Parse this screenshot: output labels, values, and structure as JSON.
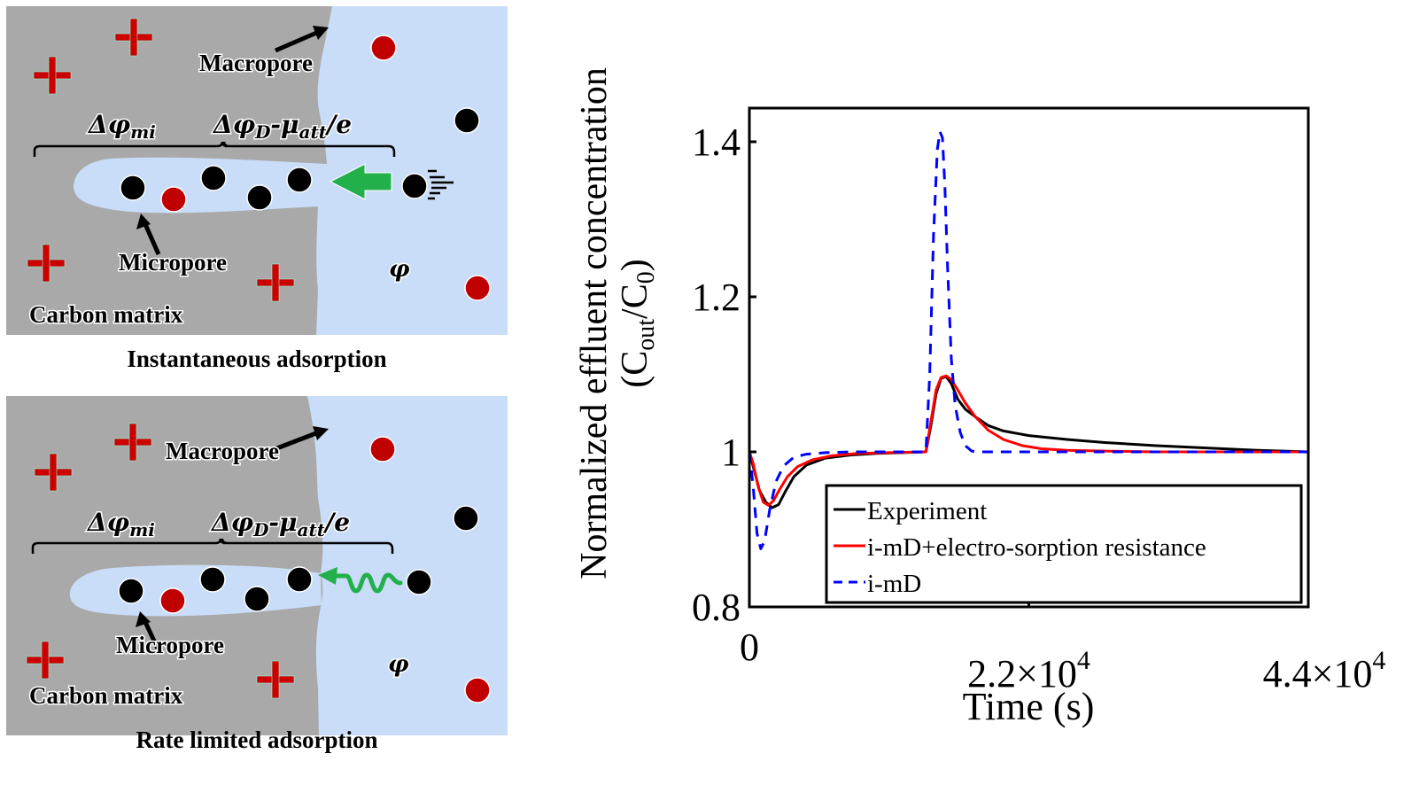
{
  "figure": {
    "panels": [
      {
        "id": "instantaneous",
        "caption": "Instantaneous adsorption",
        "labels": {
          "macropore": "Macropore",
          "micropore": "Micropore",
          "carbon_matrix": "Carbon matrix",
          "delta_phi_mi": "Δφ",
          "delta_phi_mi_sub": "mi",
          "delta_phi_d": "Δφ",
          "delta_phi_d_sub": "D",
          "mu_att": "-μ",
          "mu_att_sub": "att",
          "over_e": "/e",
          "phi": "φ"
        },
        "transport_arrow": "straight-arrow"
      },
      {
        "id": "rate-limited",
        "caption": "Rate limited adsorption",
        "labels": {
          "macropore": "Macropore",
          "micropore": "Micropore",
          "carbon_matrix": "Carbon matrix",
          "delta_phi_mi": "Δφ",
          "delta_phi_mi_sub": "mi",
          "delta_phi_d": "Δφ",
          "delta_phi_d_sub": "D",
          "mu_att": "-μ",
          "mu_att_sub": "att",
          "over_e": "/e",
          "phi": "φ"
        },
        "transport_arrow": "wavy-arrow"
      }
    ],
    "colors": {
      "matrix": "#a9a9a9",
      "pore": "#c9ddf8",
      "cation": "#c00000",
      "anion": "#000000",
      "charge": "#cc0000",
      "arrow": "#22b04b"
    }
  },
  "chart_data": {
    "type": "line",
    "title": "",
    "xlabel": "Time (s)",
    "ylabel_line1": "Normalized effluent concentration",
    "ylabel_line2_parts": [
      "(C",
      "out",
      "/C",
      "0",
      ")"
    ],
    "xlim": [
      0,
      44000
    ],
    "ylim": [
      0.8,
      1.44
    ],
    "xticks": [
      {
        "value": 0,
        "label": "0",
        "exp": ""
      },
      {
        "value": 22000,
        "label": "2.2×10",
        "exp": "4"
      },
      {
        "value": 44000,
        "label": "4.4×10",
        "exp": "4"
      }
    ],
    "yticks": [
      {
        "value": 0.8,
        "label": "0.8"
      },
      {
        "value": 1.0,
        "label": "1"
      },
      {
        "value": 1.2,
        "label": "1.2"
      },
      {
        "value": 1.4,
        "label": "1.4"
      }
    ],
    "grid": false,
    "legend_position": "bottom-right",
    "series": [
      {
        "name": "Experiment",
        "color": "#000000",
        "dash": "solid",
        "x": [
          0,
          400,
          800,
          1300,
          1800,
          2300,
          2800,
          3500,
          4500,
          6000,
          8000,
          10000,
          12000,
          13900,
          14300,
          14700,
          15100,
          15500,
          15900,
          16400,
          17000,
          17800,
          18800,
          20000,
          22000,
          25000,
          28000,
          32000,
          36000,
          40000,
          44000
        ],
        "y": [
          1.0,
          0.975,
          0.95,
          0.935,
          0.928,
          0.932,
          0.948,
          0.968,
          0.983,
          0.992,
          0.996,
          0.998,
          0.999,
          1.0,
          1.035,
          1.075,
          1.095,
          1.097,
          1.088,
          1.068,
          1.055,
          1.045,
          1.034,
          1.027,
          1.021,
          1.016,
          1.012,
          1.008,
          1.005,
          1.002,
          1.0
        ]
      },
      {
        "name": "i-mD+electro-sorption resistance",
        "color": "#ff0000",
        "dash": "solid",
        "x": [
          0,
          300,
          700,
          1100,
          1500,
          1900,
          2400,
          3000,
          3800,
          5000,
          6500,
          8500,
          11000,
          13900,
          14300,
          14700,
          15100,
          15500,
          15900,
          16400,
          17000,
          17800,
          18800,
          20000,
          21500,
          23000,
          25000,
          28000,
          32000,
          44000
        ],
        "y": [
          1.0,
          0.985,
          0.955,
          0.935,
          0.931,
          0.937,
          0.952,
          0.968,
          0.981,
          0.99,
          0.995,
          0.998,
          0.999,
          1.0,
          1.04,
          1.08,
          1.096,
          1.098,
          1.093,
          1.08,
          1.063,
          1.045,
          1.028,
          1.016,
          1.008,
          1.004,
          1.002,
          1.001,
          1.0,
          1.0
        ]
      },
      {
        "name": "i-mD",
        "color": "#0000ff",
        "dash": "dashed",
        "x": [
          0,
          300,
          600,
          900,
          1200,
          1600,
          2100,
          2700,
          3500,
          4500,
          6000,
          8000,
          10000,
          13900,
          14200,
          14500,
          14800,
          15000,
          15200,
          15400,
          15600,
          15900,
          16200,
          16600,
          17000,
          17500,
          18000,
          19000,
          22000,
          44000
        ],
        "y": [
          1.0,
          0.955,
          0.895,
          0.875,
          0.885,
          0.925,
          0.962,
          0.982,
          0.993,
          0.997,
          0.999,
          1.0,
          1.0,
          1.0,
          1.1,
          1.28,
          1.39,
          1.413,
          1.405,
          1.34,
          1.24,
          1.12,
          1.06,
          1.025,
          1.008,
          1.001,
          1.0,
          1.0,
          1.0,
          1.0
        ]
      }
    ]
  }
}
